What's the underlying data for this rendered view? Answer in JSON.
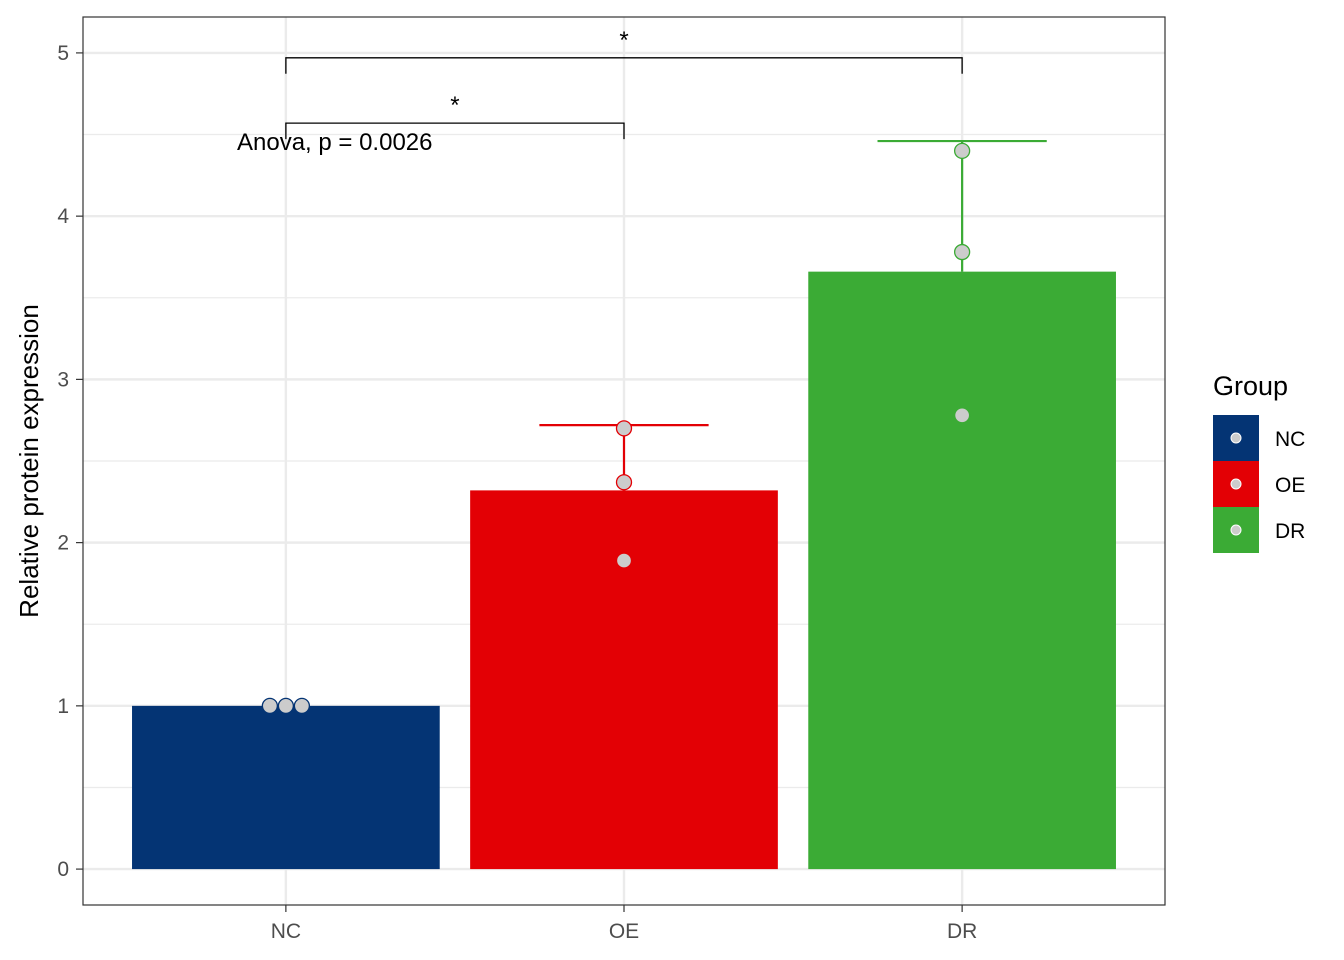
{
  "chart_data": {
    "type": "bar",
    "categories": [
      "NC",
      "OE",
      "DR"
    ],
    "values": [
      1.0,
      2.32,
      3.66
    ],
    "error_upper": [
      1.0,
      2.72,
      4.46
    ],
    "points": [
      [
        1.0,
        1.0,
        1.0
      ],
      [
        2.7,
        2.37,
        1.89
      ],
      [
        4.4,
        3.78,
        2.78
      ]
    ],
    "colors": [
      "#043474",
      "#e30005",
      "#3bab35"
    ],
    "point_color": "#cccccc",
    "title": "",
    "xlabel": "",
    "ylabel": "Relative protein expression",
    "ylim": [
      -0.22,
      5.22
    ],
    "yticks": [
      0,
      1,
      2,
      3,
      4,
      5
    ],
    "grid": true,
    "annotation": "Anova, p = 0.0026",
    "significance": [
      {
        "from": "NC",
        "to": "OE",
        "label": "*",
        "y": 4.57
      },
      {
        "from": "NC",
        "to": "DR",
        "label": "*",
        "y": 4.97
      }
    ],
    "legend": {
      "title": "Group",
      "position": "right",
      "items": [
        "NC",
        "OE",
        "DR"
      ]
    }
  }
}
